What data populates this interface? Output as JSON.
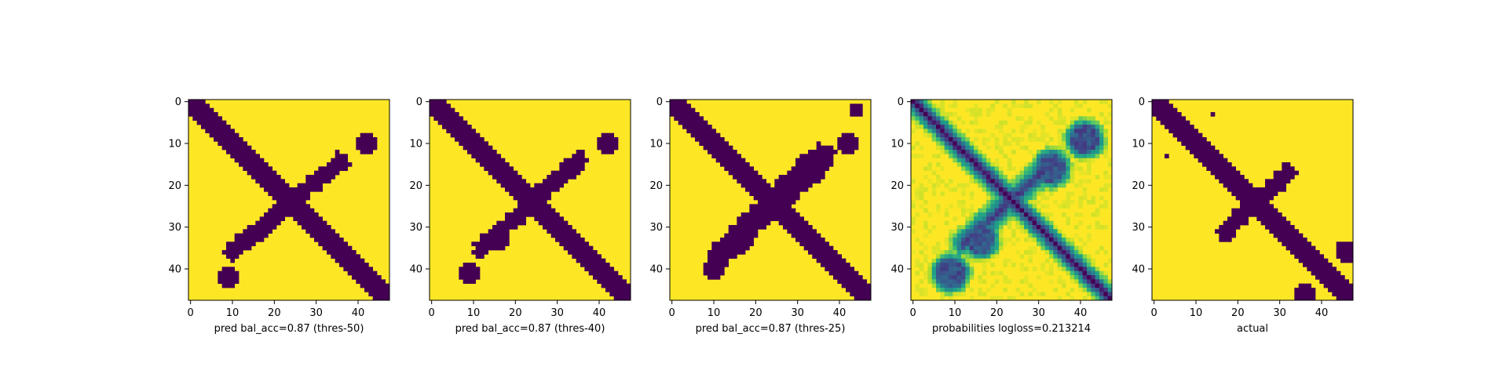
{
  "colors": {
    "low": "#440154",
    "high": "#fde725",
    "colormap": "viridis"
  },
  "chart_data": [
    {
      "type": "heatmap",
      "size": 48,
      "xlabel": "pred bal_acc=0.87 (thres-50)",
      "xticks": [
        0,
        10,
        20,
        30,
        40
      ],
      "yticks": [
        0,
        10,
        20,
        30,
        40
      ],
      "band_width": 3,
      "cross_width": 2,
      "cross_from": [
        10,
        36
      ],
      "cross_to": [
        36,
        14
      ],
      "blobs": [
        [
          42,
          10,
          2
        ],
        [
          9,
          42,
          2
        ]
      ]
    },
    {
      "type": "heatmap",
      "size": 48,
      "xlabel": "pred bal_acc=0.87 (thres-40)",
      "xticks": [
        0,
        10,
        20,
        30,
        40
      ],
      "yticks": [
        0,
        10,
        20,
        30,
        40
      ],
      "band_width": 3,
      "cross_width": 2,
      "cross_from": [
        12,
        35
      ],
      "cross_to": [
        35,
        14
      ],
      "blobs": [
        [
          42,
          10,
          2
        ],
        [
          9,
          41,
          2
        ],
        [
          16,
          33,
          2
        ],
        [
          33,
          16,
          2
        ]
      ]
    },
    {
      "type": "heatmap",
      "size": 48,
      "xlabel": "pred bal_acc=0.87 (thres-25)",
      "xticks": [
        0,
        10,
        20,
        30,
        40
      ],
      "yticks": [
        0,
        10,
        20,
        30,
        40
      ],
      "band_width": 3,
      "cross_width": 3,
      "cross_from": [
        12,
        36
      ],
      "cross_to": [
        36,
        13
      ],
      "blobs": [
        [
          42,
          10,
          2
        ],
        [
          10,
          40,
          2
        ],
        [
          16,
          33,
          3
        ],
        [
          33,
          16,
          3
        ],
        [
          44,
          2,
          1
        ]
      ]
    },
    {
      "type": "heatmap",
      "size": 48,
      "xlabel": "probabilities logloss=0.213214",
      "xticks": [
        0,
        10,
        20,
        30,
        40
      ],
      "yticks": [
        0,
        10,
        20,
        30,
        40
      ],
      "band_width": 3,
      "cross_width": 3,
      "cross_from": [
        12,
        34
      ],
      "cross_to": [
        34,
        14
      ],
      "blobs": [
        [
          41,
          9,
          3
        ],
        [
          9,
          41,
          3
        ],
        [
          16,
          33,
          3
        ],
        [
          33,
          16,
          3
        ]
      ],
      "continuous": true
    },
    {
      "type": "heatmap",
      "size": 48,
      "xlabel": "actual",
      "xticks": [
        0,
        10,
        20,
        30,
        40
      ],
      "yticks": [
        0,
        10,
        20,
        30,
        40
      ],
      "band_width": 3,
      "cross_width": 2,
      "cross_from": [
        17,
        31
      ],
      "cross_to": [
        32,
        17
      ],
      "blobs": [
        [
          36,
          46,
          2
        ],
        [
          3,
          13,
          0
        ],
        [
          46,
          36,
          2
        ],
        [
          14,
          3,
          0
        ],
        [
          45,
          35,
          1
        ]
      ]
    }
  ]
}
